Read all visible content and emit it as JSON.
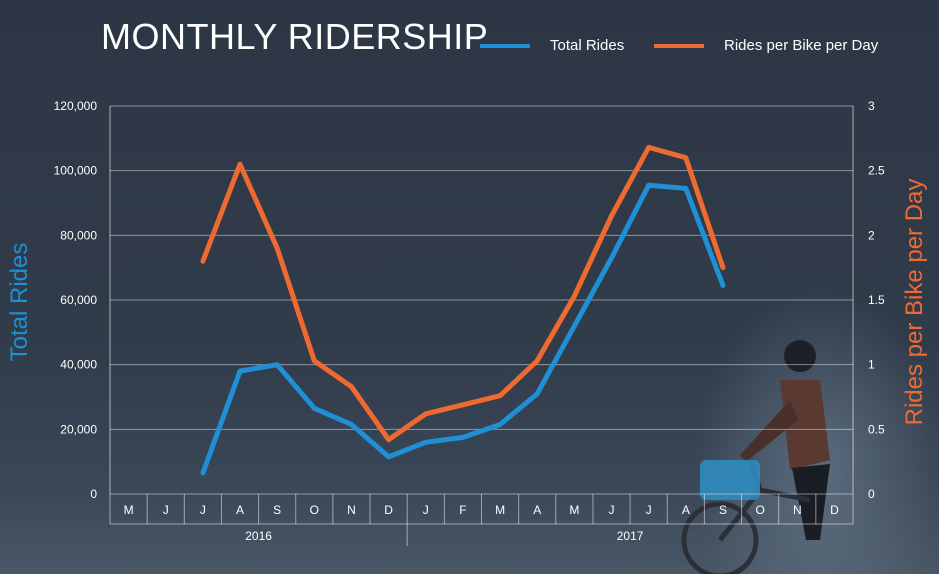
{
  "chart_data": {
    "type": "line",
    "title": "MONTHLY RIDERSHIP",
    "categories": [
      "M",
      "J",
      "J",
      "A",
      "S",
      "O",
      "N",
      "D",
      "J",
      "F",
      "M",
      "A",
      "M",
      "J",
      "J",
      "A",
      "S",
      "O",
      "N",
      "D"
    ],
    "year_groups": [
      {
        "label": "2016",
        "start": 0,
        "end": 7
      },
      {
        "label": "2017",
        "start": 8,
        "end": 19
      }
    ],
    "y_left": {
      "label": "Total Rides",
      "range": [
        0,
        120000
      ],
      "ticks": [
        "0",
        "20,000",
        "40,000",
        "60,000",
        "80,000",
        "100,000",
        "120,000"
      ],
      "tick_values": [
        0,
        20000,
        40000,
        60000,
        80000,
        100000,
        120000
      ]
    },
    "y_right": {
      "label": "Rides per Bike per Day",
      "range": [
        0,
        3
      ],
      "ticks": [
        "0",
        "0.5",
        "1",
        "1.5",
        "2",
        "2.5",
        "3"
      ],
      "tick_values": [
        0,
        0.5,
        1,
        1.5,
        2,
        2.5,
        3
      ]
    },
    "series": [
      {
        "name": "Total Rides",
        "axis": "left",
        "color": "#1f8fd6",
        "values": [
          null,
          null,
          6500,
          38000,
          40000,
          26500,
          21500,
          11500,
          16000,
          17500,
          21500,
          31000,
          52000,
          73000,
          95500,
          94500,
          64500,
          null,
          null,
          null
        ]
      },
      {
        "name": "Rides per Bike per Day",
        "axis": "right",
        "color": "#ef6a30",
        "values": [
          null,
          null,
          1.8,
          2.55,
          1.9,
          1.03,
          0.83,
          0.42,
          0.62,
          0.69,
          0.76,
          1.03,
          1.53,
          2.15,
          2.68,
          2.6,
          1.75,
          null,
          null,
          null
        ]
      }
    ],
    "grid": true,
    "legend_position": "top-right"
  }
}
